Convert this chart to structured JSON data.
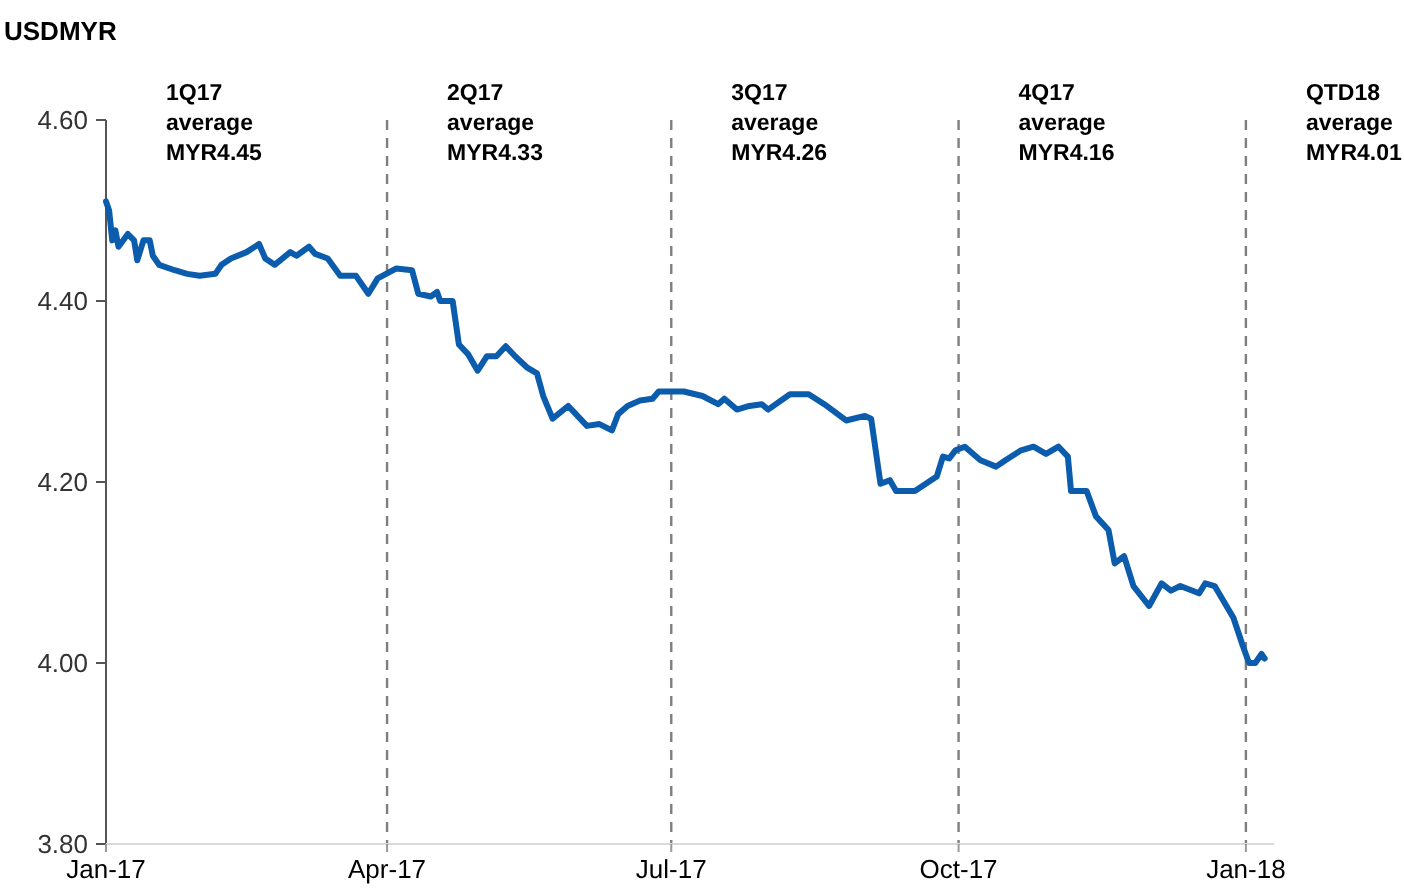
{
  "chart_data": {
    "type": "line",
    "title": "USDMYR",
    "x": [
      "2017-01-01",
      "2017-01-02",
      "2017-01-03",
      "2017-01-04",
      "2017-01-05",
      "2017-01-08",
      "2017-01-10",
      "2017-01-11",
      "2017-01-13",
      "2017-01-15",
      "2017-01-16",
      "2017-01-18",
      "2017-01-23",
      "2017-01-27",
      "2017-01-31",
      "2017-02-05",
      "2017-02-07",
      "2017-02-10",
      "2017-02-15",
      "2017-02-19",
      "2017-02-21",
      "2017-02-24",
      "2017-03-01",
      "2017-03-03",
      "2017-03-07",
      "2017-03-09",
      "2017-03-13",
      "2017-03-17",
      "2017-03-22",
      "2017-03-26",
      "2017-03-29",
      "2017-04-04",
      "2017-04-09",
      "2017-04-11",
      "2017-04-15",
      "2017-04-17",
      "2017-04-18",
      "2017-04-22",
      "2017-04-24",
      "2017-04-27",
      "2017-04-30",
      "2017-05-03",
      "2017-05-06",
      "2017-05-09",
      "2017-05-12",
      "2017-05-16",
      "2017-05-19",
      "2017-05-21",
      "2017-05-24",
      "2017-05-29",
      "2017-06-04",
      "2017-06-08",
      "2017-06-12",
      "2017-06-14",
      "2017-06-17",
      "2017-06-21",
      "2017-06-25",
      "2017-06-27",
      "2017-06-30",
      "2017-07-05",
      "2017-07-11",
      "2017-07-16",
      "2017-07-18",
      "2017-07-22",
      "2017-07-26",
      "2017-07-30",
      "2017-08-01",
      "2017-08-08",
      "2017-08-14",
      "2017-08-19",
      "2017-08-26",
      "2017-09-01",
      "2017-09-03",
      "2017-09-06",
      "2017-09-09",
      "2017-09-11",
      "2017-09-14",
      "2017-09-17",
      "2017-09-24",
      "2017-09-26",
      "2017-09-28",
      "2017-09-30",
      "2017-10-03",
      "2017-10-08",
      "2017-10-13",
      "2017-10-16",
      "2017-10-21",
      "2017-10-25",
      "2017-10-29",
      "2017-11-02",
      "2017-11-05",
      "2017-11-06",
      "2017-11-11",
      "2017-11-14",
      "2017-11-18",
      "2017-11-20",
      "2017-11-23",
      "2017-11-26",
      "2017-12-01",
      "2017-12-05",
      "2017-12-08",
      "2017-12-11",
      "2017-12-17",
      "2017-12-19",
      "2017-12-22",
      "2017-12-28",
      "2017-12-31",
      "2018-01-02",
      "2018-01-04",
      "2018-01-06",
      "2018-01-07"
    ],
    "series": [
      {
        "color": "#0b5cad",
        "values": [
          4.51,
          4.5,
          4.467,
          4.478,
          4.46,
          4.474,
          4.467,
          4.445,
          4.467,
          4.467,
          4.45,
          4.44,
          4.434,
          4.43,
          4.428,
          4.43,
          4.44,
          4.447,
          4.454,
          4.463,
          4.447,
          4.44,
          4.454,
          4.45,
          4.46,
          4.452,
          4.447,
          4.428,
          4.428,
          4.408,
          4.425,
          4.436,
          4.434,
          4.408,
          4.405,
          4.41,
          4.4,
          4.4,
          4.352,
          4.341,
          4.323,
          4.339,
          4.339,
          4.35,
          4.339,
          4.326,
          4.32,
          4.295,
          4.27,
          4.284,
          4.262,
          4.264,
          4.257,
          4.275,
          4.284,
          4.29,
          4.292,
          4.3,
          4.3,
          4.3,
          4.295,
          4.286,
          4.292,
          4.28,
          4.284,
          4.286,
          4.28,
          4.297,
          4.297,
          4.286,
          4.268,
          4.273,
          4.27,
          4.198,
          4.202,
          4.19,
          4.19,
          4.19,
          4.206,
          4.228,
          4.226,
          4.235,
          4.239,
          4.224,
          4.217,
          4.224,
          4.235,
          4.239,
          4.231,
          4.239,
          4.228,
          4.19,
          4.19,
          4.162,
          4.147,
          4.11,
          4.118,
          4.085,
          4.063,
          4.088,
          4.08,
          4.085,
          4.077,
          4.088,
          4.085,
          4.05,
          4.019,
          4.0,
          4.0,
          4.01,
          4.005
        ]
      }
    ],
    "xlim": [
      "2017-01-01",
      "2018-01-10"
    ],
    "xticks": [
      {
        "value": "2017-01-01",
        "label": "Jan-17"
      },
      {
        "value": "2017-04-01",
        "label": "Apr-17"
      },
      {
        "value": "2017-07-01",
        "label": "Jul-17"
      },
      {
        "value": "2017-10-01",
        "label": "Oct-17"
      },
      {
        "value": "2018-01-01",
        "label": "Jan-18"
      }
    ],
    "ylim": [
      3.8,
      4.6
    ],
    "yticks": [
      {
        "value": 3.8,
        "label": "3.80"
      },
      {
        "value": 4.0,
        "label": "4.00"
      },
      {
        "value": 4.2,
        "label": "4.20"
      },
      {
        "value": 4.4,
        "label": "4.40"
      },
      {
        "value": 4.6,
        "label": "4.60"
      }
    ],
    "ref_lines": [
      {
        "axis": "x",
        "value": "2017-04-01",
        "color": "#7f7f7f",
        "line_style": "dashed"
      },
      {
        "axis": "x",
        "value": "2017-07-01",
        "color": "#7f7f7f",
        "line_style": "dashed"
      },
      {
        "axis": "x",
        "value": "2017-10-01",
        "color": "#7f7f7f",
        "line_style": "dashed"
      },
      {
        "axis": "x",
        "value": "2018-01-01",
        "color": "#7f7f7f",
        "line_style": "dashed"
      }
    ],
    "annotations": [
      "1Q17\naverage\nMYR4.45",
      "2Q17\naverage\nMYR4.33",
      "3Q17\naverage\nMYR4.26",
      "4Q17\naverage\nMYR4.16",
      "QTD18\naverage\nMYR4.01"
    ],
    "grid": false,
    "marker": "none",
    "line_style": "solid"
  }
}
